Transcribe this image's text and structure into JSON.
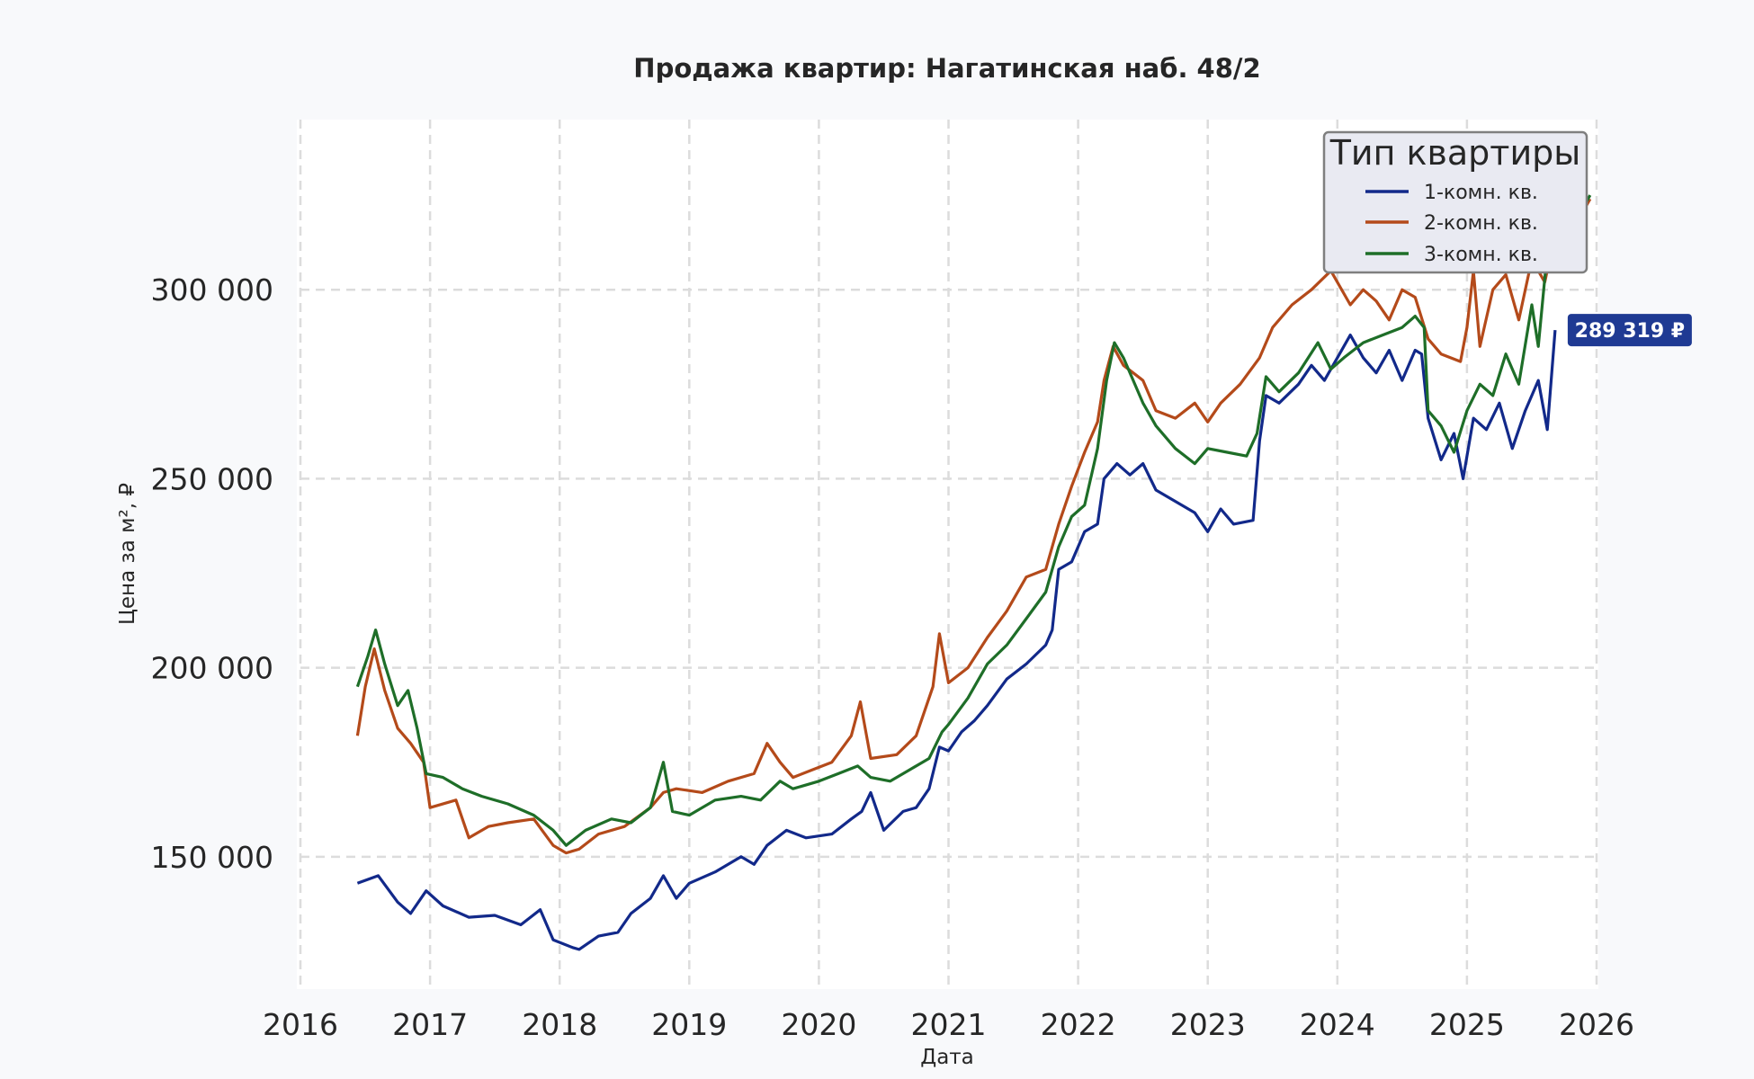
{
  "chart_data": {
    "type": "line",
    "title": "Продажа квартир: Нагатинская наб. 48/2",
    "xlabel": "Дата",
    "ylabel": "Цена за м², ₽",
    "xlim": [
      2016.0,
      2026.0
    ],
    "ylim": [
      115000,
      345000
    ],
    "x_ticks": [
      2016,
      2017,
      2018,
      2019,
      2020,
      2021,
      2022,
      2023,
      2024,
      2025,
      2026
    ],
    "x_tick_labels": [
      "2016",
      "2017",
      "2018",
      "2019",
      "2020",
      "2021",
      "2022",
      "2023",
      "2024",
      "2025",
      "2026"
    ],
    "y_ticks": [
      150000,
      200000,
      250000,
      300000
    ],
    "y_tick_labels": [
      "150 000",
      "200 000",
      "250 000",
      "300 000"
    ],
    "grid": true,
    "legend": {
      "title": "Тип квартиры",
      "position": "top-right"
    },
    "series": [
      {
        "name": "1-комн. кв.",
        "color": "#12298a",
        "points": [
          [
            2016.44,
            143000
          ],
          [
            2016.6,
            145000
          ],
          [
            2016.75,
            138000
          ],
          [
            2016.85,
            135000
          ],
          [
            2016.97,
            141000
          ],
          [
            2017.1,
            137000
          ],
          [
            2017.3,
            134000
          ],
          [
            2017.5,
            134500
          ],
          [
            2017.7,
            132000
          ],
          [
            2017.85,
            136000
          ],
          [
            2017.95,
            128000
          ],
          [
            2018.1,
            126000
          ],
          [
            2018.15,
            125500
          ],
          [
            2018.3,
            129000
          ],
          [
            2018.45,
            130000
          ],
          [
            2018.55,
            135000
          ],
          [
            2018.7,
            139000
          ],
          [
            2018.8,
            145000
          ],
          [
            2018.9,
            139000
          ],
          [
            2019.0,
            143000
          ],
          [
            2019.2,
            146000
          ],
          [
            2019.4,
            150000
          ],
          [
            2019.5,
            148000
          ],
          [
            2019.6,
            153000
          ],
          [
            2019.75,
            157000
          ],
          [
            2019.9,
            155000
          ],
          [
            2020.1,
            156000
          ],
          [
            2020.25,
            160000
          ],
          [
            2020.33,
            162000
          ],
          [
            2020.4,
            167000
          ],
          [
            2020.5,
            157000
          ],
          [
            2020.65,
            162000
          ],
          [
            2020.75,
            163000
          ],
          [
            2020.85,
            168000
          ],
          [
            2020.93,
            179000
          ],
          [
            2021.0,
            178000
          ],
          [
            2021.1,
            183000
          ],
          [
            2021.2,
            186000
          ],
          [
            2021.3,
            190000
          ],
          [
            2021.45,
            197000
          ],
          [
            2021.6,
            201000
          ],
          [
            2021.75,
            206000
          ],
          [
            2021.8,
            210000
          ],
          [
            2021.85,
            226000
          ],
          [
            2021.95,
            228000
          ],
          [
            2022.05,
            236000
          ],
          [
            2022.15,
            238000
          ],
          [
            2022.2,
            250000
          ],
          [
            2022.3,
            254000
          ],
          [
            2022.4,
            251000
          ],
          [
            2022.5,
            254000
          ],
          [
            2022.6,
            247000
          ],
          [
            2022.75,
            244000
          ],
          [
            2022.9,
            241000
          ],
          [
            2023.0,
            236000
          ],
          [
            2023.1,
            242000
          ],
          [
            2023.2,
            238000
          ],
          [
            2023.35,
            239000
          ],
          [
            2023.4,
            260000
          ],
          [
            2023.45,
            272000
          ],
          [
            2023.55,
            270000
          ],
          [
            2023.7,
            275000
          ],
          [
            2023.8,
            280000
          ],
          [
            2023.9,
            276000
          ],
          [
            2024.0,
            282000
          ],
          [
            2024.1,
            288000
          ],
          [
            2024.2,
            282000
          ],
          [
            2024.3,
            278000
          ],
          [
            2024.4,
            284000
          ],
          [
            2024.5,
            276000
          ],
          [
            2024.6,
            284000
          ],
          [
            2024.65,
            283000
          ],
          [
            2024.7,
            266000
          ],
          [
            2024.8,
            255000
          ],
          [
            2024.9,
            262000
          ],
          [
            2024.97,
            250000
          ],
          [
            2025.05,
            266000
          ],
          [
            2025.15,
            263000
          ],
          [
            2025.25,
            270000
          ],
          [
            2025.35,
            258000
          ],
          [
            2025.45,
            268000
          ],
          [
            2025.55,
            276000
          ],
          [
            2025.62,
            263000
          ],
          [
            2025.68,
            289319
          ]
        ]
      },
      {
        "name": "2-комн. кв.",
        "color": "#b44a1a",
        "points": [
          [
            2016.44,
            182000
          ],
          [
            2016.5,
            195000
          ],
          [
            2016.57,
            205000
          ],
          [
            2016.65,
            194000
          ],
          [
            2016.75,
            184000
          ],
          [
            2016.85,
            180000
          ],
          [
            2016.95,
            175000
          ],
          [
            2017.0,
            163000
          ],
          [
            2017.2,
            165000
          ],
          [
            2017.3,
            155000
          ],
          [
            2017.45,
            158000
          ],
          [
            2017.6,
            159000
          ],
          [
            2017.8,
            160000
          ],
          [
            2017.95,
            153000
          ],
          [
            2018.05,
            151000
          ],
          [
            2018.15,
            152000
          ],
          [
            2018.3,
            156000
          ],
          [
            2018.5,
            158000
          ],
          [
            2018.7,
            163000
          ],
          [
            2018.8,
            167000
          ],
          [
            2018.9,
            168000
          ],
          [
            2019.1,
            167000
          ],
          [
            2019.3,
            170000
          ],
          [
            2019.5,
            172000
          ],
          [
            2019.6,
            180000
          ],
          [
            2019.7,
            175000
          ],
          [
            2019.8,
            171000
          ],
          [
            2019.95,
            173000
          ],
          [
            2020.1,
            175000
          ],
          [
            2020.25,
            182000
          ],
          [
            2020.32,
            191000
          ],
          [
            2020.4,
            176000
          ],
          [
            2020.6,
            177000
          ],
          [
            2020.75,
            182000
          ],
          [
            2020.88,
            195000
          ],
          [
            2020.93,
            209000
          ],
          [
            2021.0,
            196000
          ],
          [
            2021.15,
            200000
          ],
          [
            2021.3,
            208000
          ],
          [
            2021.45,
            215000
          ],
          [
            2021.6,
            224000
          ],
          [
            2021.75,
            226000
          ],
          [
            2021.85,
            238000
          ],
          [
            2021.95,
            248000
          ],
          [
            2022.05,
            257000
          ],
          [
            2022.15,
            265000
          ],
          [
            2022.2,
            276000
          ],
          [
            2022.27,
            285000
          ],
          [
            2022.35,
            280000
          ],
          [
            2022.5,
            276000
          ],
          [
            2022.6,
            268000
          ],
          [
            2022.75,
            266000
          ],
          [
            2022.9,
            270000
          ],
          [
            2023.0,
            265000
          ],
          [
            2023.1,
            270000
          ],
          [
            2023.25,
            275000
          ],
          [
            2023.4,
            282000
          ],
          [
            2023.5,
            290000
          ],
          [
            2023.65,
            296000
          ],
          [
            2023.8,
            300000
          ],
          [
            2023.95,
            305000
          ],
          [
            2024.1,
            296000
          ],
          [
            2024.2,
            300000
          ],
          [
            2024.3,
            297000
          ],
          [
            2024.4,
            292000
          ],
          [
            2024.5,
            300000
          ],
          [
            2024.6,
            298000
          ],
          [
            2024.7,
            287000
          ],
          [
            2024.8,
            283000
          ],
          [
            2024.95,
            281000
          ],
          [
            2025.0,
            290000
          ],
          [
            2025.05,
            305000
          ],
          [
            2025.1,
            285000
          ],
          [
            2025.2,
            300000
          ],
          [
            2025.3,
            304000
          ],
          [
            2025.4,
            292000
          ],
          [
            2025.5,
            308000
          ],
          [
            2025.6,
            302000
          ],
          [
            2025.7,
            318000
          ],
          [
            2025.85,
            318000
          ],
          [
            2025.95,
            324000
          ]
        ]
      },
      {
        "name": "3-комн. кв.",
        "color": "#1e6e28",
        "points": [
          [
            2016.44,
            195000
          ],
          [
            2016.52,
            203000
          ],
          [
            2016.58,
            210000
          ],
          [
            2016.65,
            201000
          ],
          [
            2016.75,
            190000
          ],
          [
            2016.83,
            194000
          ],
          [
            2016.9,
            184000
          ],
          [
            2016.97,
            172000
          ],
          [
            2017.1,
            171000
          ],
          [
            2017.25,
            168000
          ],
          [
            2017.4,
            166000
          ],
          [
            2017.6,
            164000
          ],
          [
            2017.8,
            161000
          ],
          [
            2017.95,
            157000
          ],
          [
            2018.05,
            153000
          ],
          [
            2018.2,
            157000
          ],
          [
            2018.4,
            160000
          ],
          [
            2018.55,
            159000
          ],
          [
            2018.7,
            163000
          ],
          [
            2018.8,
            175000
          ],
          [
            2018.87,
            162000
          ],
          [
            2019.0,
            161000
          ],
          [
            2019.2,
            165000
          ],
          [
            2019.4,
            166000
          ],
          [
            2019.55,
            165000
          ],
          [
            2019.7,
            170000
          ],
          [
            2019.8,
            168000
          ],
          [
            2020.0,
            170000
          ],
          [
            2020.15,
            172000
          ],
          [
            2020.3,
            174000
          ],
          [
            2020.4,
            171000
          ],
          [
            2020.55,
            170000
          ],
          [
            2020.7,
            173000
          ],
          [
            2020.85,
            176000
          ],
          [
            2020.95,
            183000
          ],
          [
            2021.0,
            185000
          ],
          [
            2021.15,
            192000
          ],
          [
            2021.3,
            201000
          ],
          [
            2021.45,
            206000
          ],
          [
            2021.6,
            213000
          ],
          [
            2021.75,
            220000
          ],
          [
            2021.85,
            232000
          ],
          [
            2021.95,
            240000
          ],
          [
            2022.05,
            243000
          ],
          [
            2022.15,
            258000
          ],
          [
            2022.22,
            276000
          ],
          [
            2022.28,
            286000
          ],
          [
            2022.35,
            282000
          ],
          [
            2022.5,
            270000
          ],
          [
            2022.6,
            264000
          ],
          [
            2022.75,
            258000
          ],
          [
            2022.9,
            254000
          ],
          [
            2023.0,
            258000
          ],
          [
            2023.15,
            257000
          ],
          [
            2023.3,
            256000
          ],
          [
            2023.38,
            262000
          ],
          [
            2023.45,
            277000
          ],
          [
            2023.55,
            273000
          ],
          [
            2023.7,
            278000
          ],
          [
            2023.85,
            286000
          ],
          [
            2023.95,
            279000
          ],
          [
            2024.05,
            282000
          ],
          [
            2024.2,
            286000
          ],
          [
            2024.35,
            288000
          ],
          [
            2024.5,
            290000
          ],
          [
            2024.6,
            293000
          ],
          [
            2024.67,
            290000
          ],
          [
            2024.7,
            268000
          ],
          [
            2024.8,
            264000
          ],
          [
            2024.9,
            257000
          ],
          [
            2025.0,
            268000
          ],
          [
            2025.1,
            275000
          ],
          [
            2025.2,
            272000
          ],
          [
            2025.3,
            283000
          ],
          [
            2025.4,
            275000
          ],
          [
            2025.5,
            296000
          ],
          [
            2025.55,
            285000
          ],
          [
            2025.62,
            310000
          ],
          [
            2025.7,
            320000
          ],
          [
            2025.85,
            319000
          ],
          [
            2025.95,
            325000
          ]
        ]
      }
    ],
    "annotations": [
      {
        "text": "289 319 ₽",
        "series": "1-комн. кв.",
        "x": 2025.68,
        "y": 289319,
        "color": "#1f3a93"
      }
    ]
  }
}
